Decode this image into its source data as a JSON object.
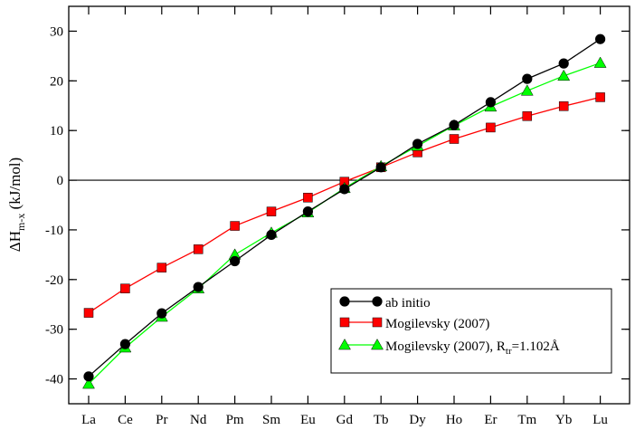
{
  "chart_data": {
    "type": "line",
    "title": "",
    "xlabel": "",
    "ylabel": {
      "main": "ΔH",
      "subscript": "m-x",
      "unit": " (kJ/mol)"
    },
    "categories": [
      "La",
      "Ce",
      "Pr",
      "Nd",
      "Pm",
      "Sm",
      "Eu",
      "Gd",
      "Tb",
      "Dy",
      "Ho",
      "Er",
      "Tm",
      "Yb",
      "Lu"
    ],
    "ylim": [
      -45,
      35
    ],
    "yticks": [
      -40,
      -30,
      -20,
      -10,
      0,
      10,
      20,
      30
    ],
    "ytick_labels": [
      "-40",
      "-30",
      "-20",
      "-10",
      "0",
      "10",
      "20",
      "30"
    ],
    "grid": false,
    "zero_line": true,
    "legend_position": "bottom-right",
    "series": [
      {
        "name": "ab initio",
        "color": "#000000",
        "marker": "circle",
        "values": [
          -39.5,
          -33.0,
          -26.8,
          -21.5,
          -16.3,
          -11.0,
          -6.3,
          -1.8,
          2.6,
          7.3,
          11.1,
          15.7,
          20.4,
          23.5,
          28.4
        ]
      },
      {
        "name": "Mogilevsky (2007)",
        "color": "#ff0000",
        "marker": "square",
        "values": [
          -26.7,
          -21.8,
          -17.6,
          -13.9,
          -9.2,
          -6.3,
          -3.5,
          -0.3,
          2.6,
          5.6,
          8.3,
          10.6,
          12.9,
          14.9,
          16.7
        ]
      },
      {
        "name": "Mogilevsky (2007), R",
        "name_subscript": "tr",
        "name_suffix": "=1.102Å",
        "color": "#00ff00",
        "marker": "triangle",
        "values": [
          -41.0,
          -33.7,
          -27.5,
          -21.8,
          -15.0,
          -10.6,
          -6.5,
          -1.6,
          2.8,
          6.9,
          11.0,
          14.8,
          18.0,
          21.0,
          23.6
        ]
      }
    ]
  }
}
